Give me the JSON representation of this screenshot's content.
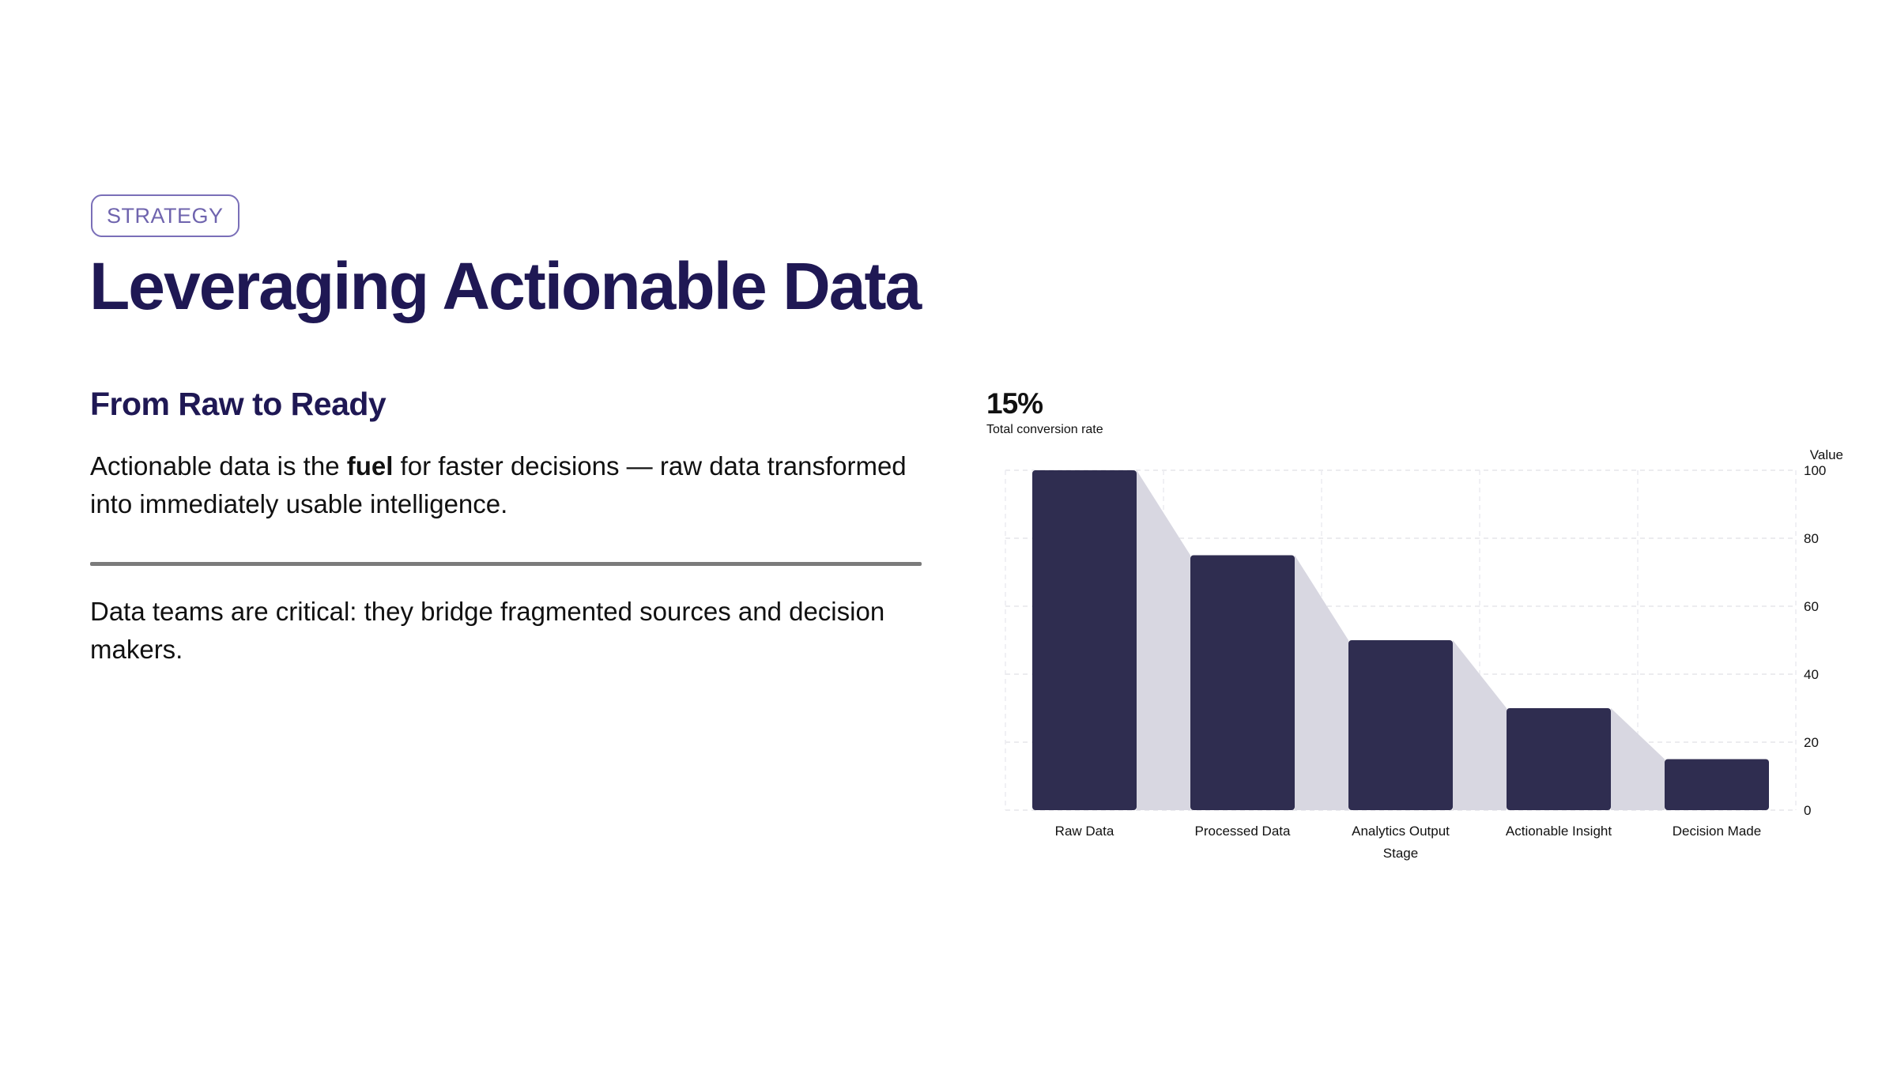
{
  "tag": "STRATEGY",
  "title": "Leveraging Actionable Data",
  "subtitle": "From Raw to Ready",
  "paragraph1": {
    "before": "Actionable data is the ",
    "bold": "fuel",
    "after": " for faster decisions — raw data transformed into immediately usable intelligence."
  },
  "paragraph2": "Data teams are critical: they bridge fragmented sources and decision makers.",
  "kpi": {
    "value": "15%",
    "label": "Total conversion rate"
  },
  "colors": {
    "bar": "#2f2d50",
    "connector": "#d8d7e1",
    "title": "#1f1854",
    "accent": "#6f64ae"
  },
  "chart_data": {
    "type": "bar",
    "categories": [
      "Raw Data",
      "Processed Data",
      "Analytics Output",
      "Actionable Insight",
      "Decision Made"
    ],
    "values": [
      100,
      75,
      50,
      30,
      15
    ],
    "xlabel": "Stage",
    "ylabel": "Value",
    "ylim": [
      0,
      100
    ],
    "yticks": [
      0,
      20,
      40,
      60,
      80,
      100
    ],
    "y_axis_side": "right",
    "grid": true
  }
}
